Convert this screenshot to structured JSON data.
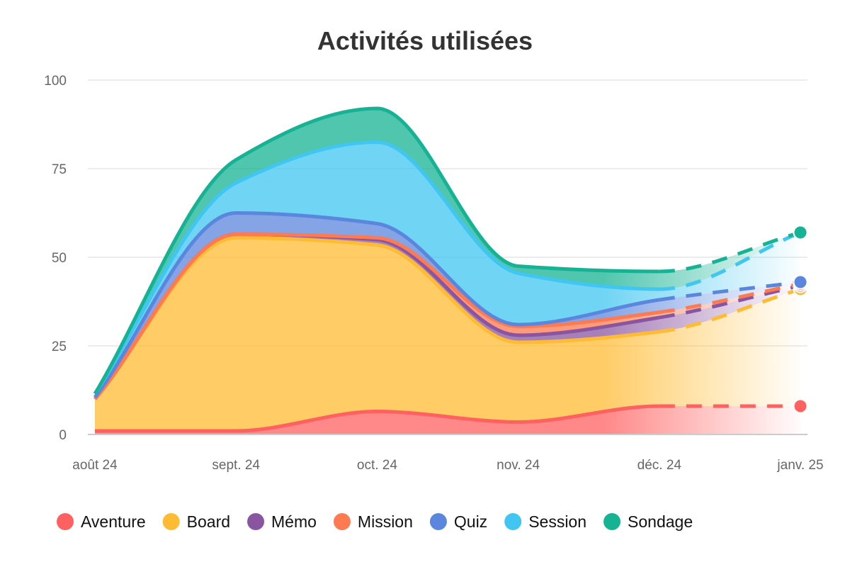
{
  "chart_data": {
    "type": "area",
    "stacked": true,
    "title": "Activités utilisées",
    "xlabel": "",
    "ylabel": "",
    "ylim": [
      0,
      100
    ],
    "yticks": [
      0,
      25,
      50,
      75,
      100
    ],
    "grid": true,
    "legend_position": "bottom",
    "projected_last_segment": true,
    "categories": [
      "août 24",
      "sept. 24",
      "oct. 24",
      "nov. 24",
      "déc. 24",
      "janv. 25"
    ],
    "series": [
      {
        "name": "Aventure",
        "color": "#ff6060",
        "values": [
          1,
          1,
          6.5,
          3.5,
          8,
          8
        ]
      },
      {
        "name": "Board",
        "color": "#ffbb33",
        "values": [
          9,
          54.5,
          47,
          22.5,
          21,
          33
        ]
      },
      {
        "name": "Mémo",
        "color": "#8a55a0",
        "values": [
          0,
          1,
          1.5,
          2,
          4,
          1
        ]
      },
      {
        "name": "Mission",
        "color": "#ff7a50",
        "values": [
          0,
          0,
          0.5,
          2.5,
          1.5,
          0.5
        ]
      },
      {
        "name": "Quiz",
        "color": "#5b86dd",
        "values": [
          0.5,
          6,
          4,
          0.5,
          3.5,
          0.5
        ]
      },
      {
        "name": "Session",
        "color": "#40c6f0",
        "values": [
          1,
          8.5,
          23,
          14.5,
          3,
          14
        ]
      },
      {
        "name": "Sondage",
        "color": "#15b394",
        "values": [
          0,
          6.5,
          9.5,
          2,
          5,
          0
        ]
      }
    ]
  }
}
